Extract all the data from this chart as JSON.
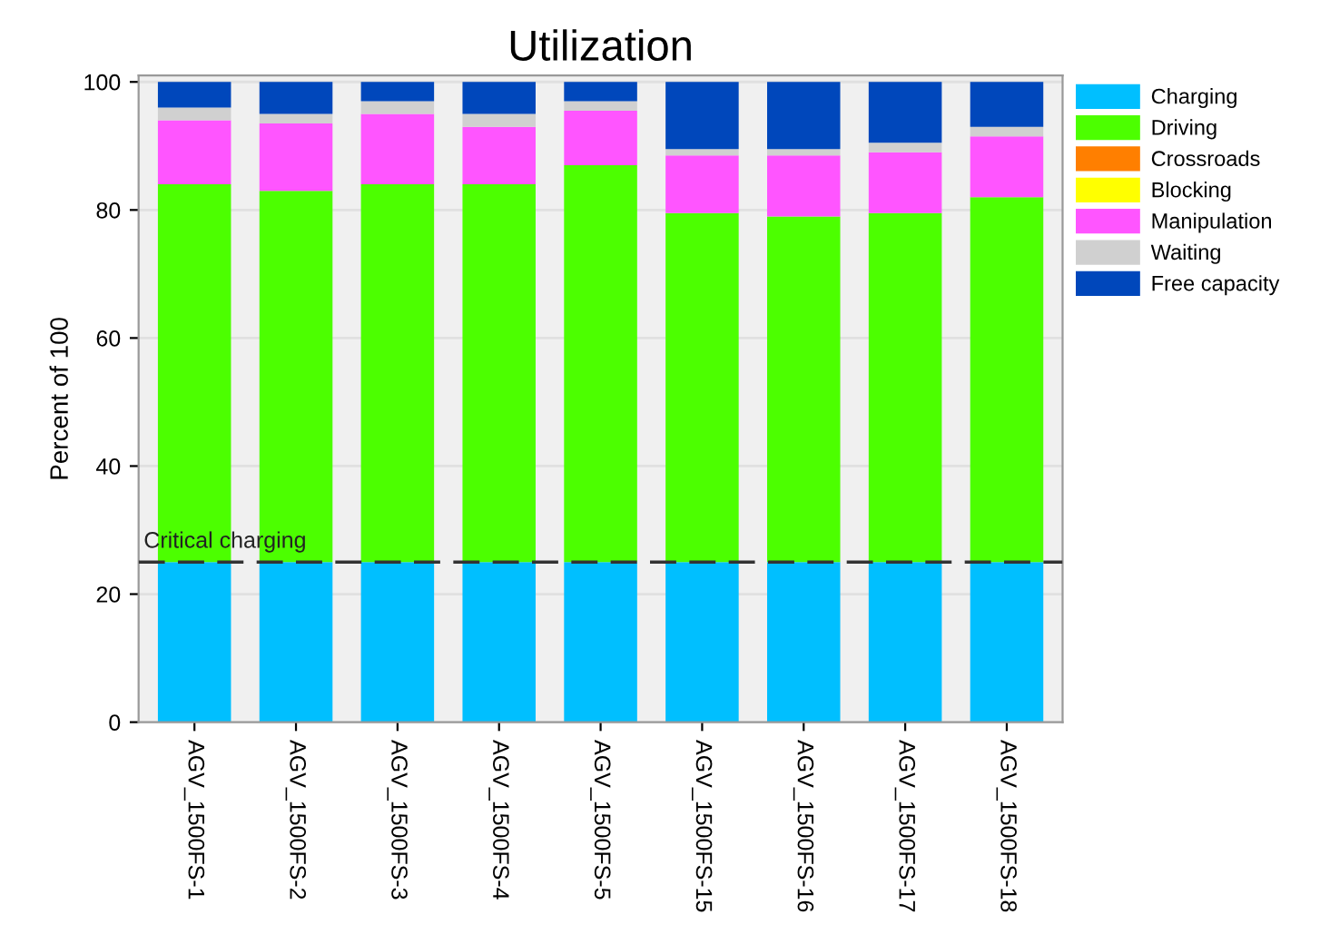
{
  "chart_data": {
    "type": "bar",
    "title": "Utilization",
    "ylabel": "Percent of 100",
    "stacked": true,
    "categories": [
      "AGV_1500FS-1",
      "AGV_1500FS-2",
      "AGV_1500FS-3",
      "AGV_1500FS-4",
      "AGV_1500FS-5",
      "AGV_1500FS-15",
      "AGV_1500FS-16",
      "AGV_1500FS-17",
      "AGV_1500FS-18"
    ],
    "series": [
      {
        "name": "Charging",
        "color": "#00bfff",
        "values": [
          25,
          25,
          25,
          25,
          25,
          25,
          25,
          25,
          25
        ]
      },
      {
        "name": "Driving",
        "color": "#4cff00",
        "values": [
          59,
          58,
          59,
          59,
          62,
          54.5,
          54,
          54.5,
          57
        ]
      },
      {
        "name": "Crossroads",
        "color": "#ff7f00",
        "values": [
          0,
          0,
          0,
          0,
          0,
          0,
          0,
          0,
          0
        ]
      },
      {
        "name": "Blocking",
        "color": "#ffff00",
        "values": [
          0,
          0,
          0,
          0,
          0,
          0,
          0,
          0,
          0
        ]
      },
      {
        "name": "Manipulation",
        "color": "#ff55ff",
        "values": [
          10,
          10.5,
          11,
          9,
          8.5,
          9,
          9.5,
          9.5,
          9.5
        ]
      },
      {
        "name": "Waiting",
        "color": "#d0d0d0",
        "values": [
          2,
          1.5,
          2,
          2,
          1.5,
          1,
          1,
          1.5,
          1.5
        ]
      },
      {
        "name": "Free capacity",
        "color": "#0047bb",
        "values": [
          4,
          5,
          3,
          5,
          3,
          10.5,
          10.5,
          9.5,
          7
        ]
      }
    ],
    "ylim": [
      0,
      101
    ],
    "yticks": [
      0,
      20,
      40,
      60,
      80,
      100
    ],
    "grid": "y",
    "legend": "right",
    "ref_lines": [
      {
        "axis": "y",
        "value": 25,
        "label": "Critical charging",
        "color": "#333333",
        "line_style": "dashed"
      }
    ]
  }
}
